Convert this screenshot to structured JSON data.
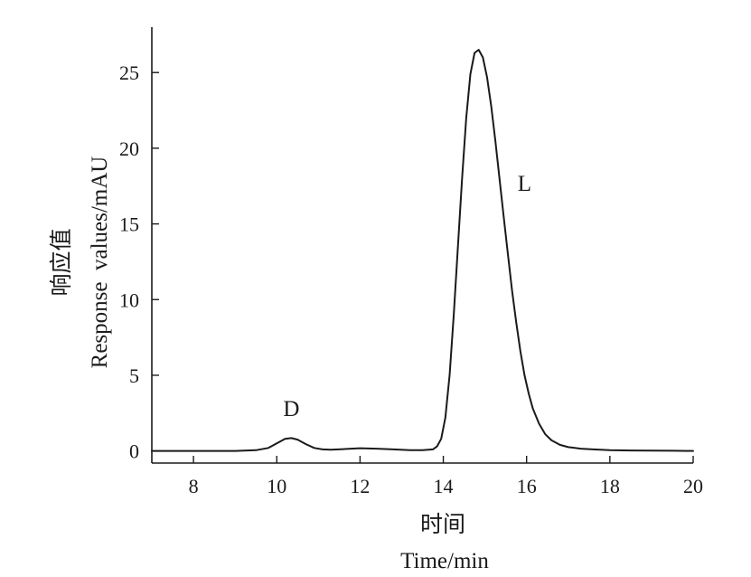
{
  "chart_data": {
    "type": "line",
    "title": "",
    "xlabel_cn": "时间",
    "xlabel": "Time/min",
    "ylabel_cn": "响应值",
    "ylabel": "Response  values/mAU",
    "xlim": [
      7,
      20
    ],
    "ylim": [
      -0.8,
      28
    ],
    "x_ticks": [
      8,
      10,
      12,
      14,
      16,
      18,
      20
    ],
    "y_ticks": [
      0,
      5,
      10,
      15,
      20,
      25
    ],
    "grid": false,
    "line_color": "#1a1a1a",
    "series": [
      {
        "x": [
          7.0,
          8.0,
          9.0,
          9.5,
          9.8,
          10.0,
          10.2,
          10.35,
          10.5,
          10.7,
          10.9,
          11.1,
          11.3,
          11.6,
          12.0,
          12.4,
          12.8,
          13.2,
          13.5,
          13.75,
          13.85,
          13.95,
          14.05,
          14.15,
          14.25,
          14.35,
          14.45,
          14.55,
          14.65,
          14.75,
          14.85,
          14.95,
          15.05,
          15.15,
          15.25,
          15.35,
          15.45,
          15.55,
          15.65,
          15.75,
          15.85,
          15.95,
          16.05,
          16.15,
          16.3,
          16.45,
          16.6,
          16.8,
          17.0,
          17.3,
          17.6,
          18.0,
          18.5,
          19.0,
          19.5,
          20.0
        ],
        "values": [
          0.0,
          0.0,
          0.0,
          0.05,
          0.2,
          0.5,
          0.8,
          0.85,
          0.75,
          0.45,
          0.2,
          0.1,
          0.08,
          0.12,
          0.18,
          0.15,
          0.1,
          0.05,
          0.05,
          0.1,
          0.3,
          0.8,
          2.2,
          5.0,
          9.0,
          13.5,
          18.0,
          22.0,
          24.9,
          26.3,
          26.5,
          26.0,
          24.7,
          22.8,
          20.5,
          18.0,
          15.5,
          13.0,
          10.6,
          8.5,
          6.6,
          5.0,
          3.8,
          2.8,
          1.8,
          1.1,
          0.7,
          0.4,
          0.25,
          0.15,
          0.1,
          0.05,
          0.03,
          0.02,
          0.01,
          0.0
        ]
      }
    ],
    "annotations": [
      {
        "text": "D",
        "x": 10.35,
        "y": 2.3
      },
      {
        "text": "L",
        "x": 15.95,
        "y": 17.2
      }
    ]
  }
}
